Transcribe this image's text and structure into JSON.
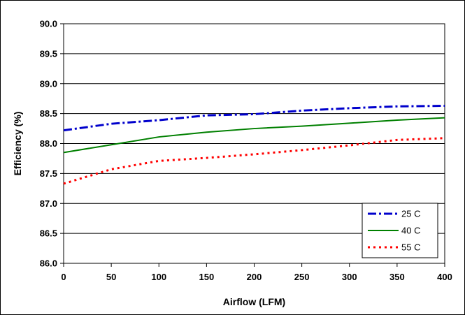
{
  "chart_data": {
    "type": "line",
    "title": "",
    "xlabel": "Airflow (LFM)",
    "ylabel": "Efficiency (%)",
    "xlim": [
      0,
      400
    ],
    "ylim": [
      86.0,
      90.0
    ],
    "x_ticks": [
      "0",
      "50",
      "100",
      "150",
      "200",
      "250",
      "300",
      "350",
      "400"
    ],
    "y_ticks": [
      "86.0",
      "86.5",
      "87.0",
      "87.5",
      "88.0",
      "88.5",
      "89.0",
      "89.5",
      "90.0"
    ],
    "grid": "horizontal",
    "legend_position": "bottom-right",
    "x": [
      0,
      50,
      100,
      150,
      200,
      250,
      300,
      350,
      400
    ],
    "series": [
      {
        "name": "25 C",
        "color": "#0000cc",
        "style": "dash-dot",
        "values": [
          88.22,
          88.33,
          88.39,
          88.47,
          88.49,
          88.55,
          88.59,
          88.62,
          88.63
        ]
      },
      {
        "name": "40 C",
        "color": "#008000",
        "style": "solid",
        "values": [
          87.85,
          87.98,
          88.11,
          88.19,
          88.25,
          88.29,
          88.34,
          88.39,
          88.43
        ]
      },
      {
        "name": "55 C",
        "color": "#ff0000",
        "style": "dotted",
        "values": [
          87.33,
          87.57,
          87.71,
          87.76,
          87.82,
          87.89,
          87.97,
          88.06,
          88.09
        ]
      }
    ]
  }
}
